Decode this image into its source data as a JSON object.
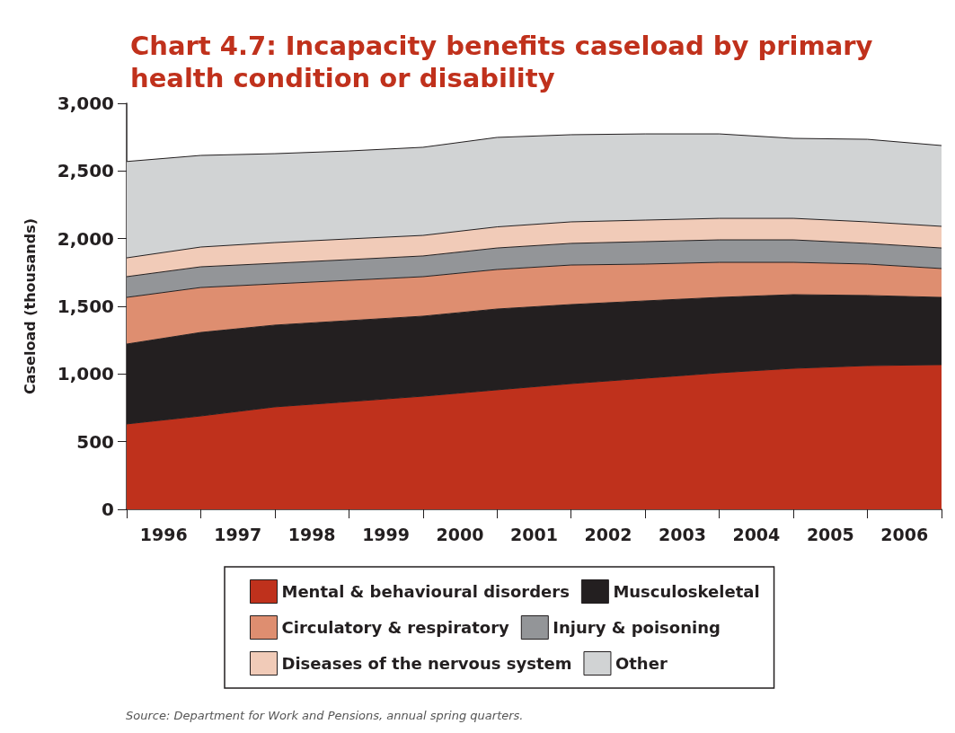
{
  "chart_data": {
    "type": "area",
    "stacked": true,
    "title": "Chart 4.7: Incapacity benefits caseload by primary health condition or disability",
    "ylabel": "Caseload (thousands)",
    "annotations": [
      "Source: Department for Work and Pensions, annual spring quarters."
    ],
    "x": [
      1996,
      1997,
      1998,
      1999,
      2000,
      2001,
      2002,
      2003,
      2004,
      2005,
      2006,
      2007
    ],
    "xlim": [
      1996,
      2007
    ],
    "xticks": [
      {
        "value": 1996,
        "label": null
      },
      {
        "value": 1996.5,
        "label": "1996"
      },
      {
        "value": 1997,
        "label": null
      },
      {
        "value": 1997.5,
        "label": "1997"
      },
      {
        "value": 1998,
        "label": null
      },
      {
        "value": 1998.5,
        "label": "1998"
      },
      {
        "value": 1999,
        "label": null
      },
      {
        "value": 1999.5,
        "label": "1999"
      },
      {
        "value": 2000,
        "label": null
      },
      {
        "value": 2000.5,
        "label": "2000"
      },
      {
        "value": 2001,
        "label": null
      },
      {
        "value": 2001.5,
        "label": "2001"
      },
      {
        "value": 2002,
        "label": null
      },
      {
        "value": 2002.5,
        "label": "2002"
      },
      {
        "value": 2003,
        "label": null
      },
      {
        "value": 2003.5,
        "label": "2003"
      },
      {
        "value": 2004,
        "label": null
      },
      {
        "value": 2004.5,
        "label": "2004"
      },
      {
        "value": 2005,
        "label": null
      },
      {
        "value": 2005.5,
        "label": "2005"
      },
      {
        "value": 2006,
        "label": null
      },
      {
        "value": 2006.5,
        "label": "2006"
      },
      {
        "value": 2007,
        "label": null
      }
    ],
    "ylim": [
      0,
      3000
    ],
    "yticks": [
      0,
      500,
      {
        "value": 1000,
        "label": "1,000"
      },
      {
        "value": 1500,
        "label": "1,500"
      },
      {
        "value": 2000,
        "label": "2,000"
      },
      {
        "value": 2500,
        "label": "2,500"
      },
      {
        "value": 3000,
        "label": "3,000"
      }
    ],
    "grid": false,
    "legend": "bottom",
    "series": [
      {
        "name": "Mental & behavioural disorders",
        "color": "#bf311c",
        "values": [
          631,
          690,
          757,
          796,
          836,
          883,
          929,
          969,
          1009,
          1042,
          1062,
          1069
        ]
      },
      {
        "name": "Musculoskeletal",
        "color": "#231f20",
        "values": [
          590,
          617,
          604,
          598,
          591,
          597,
          584,
          571,
          557,
          544,
          518,
          497
        ]
      },
      {
        "name": "Circulatory & respiratory",
        "color": "#de8e70",
        "values": [
          345,
          332,
          305,
          298,
          292,
          292,
          292,
          272,
          259,
          239,
          232,
          213
        ]
      },
      {
        "name": "Injury & poisoning",
        "color": "#939598",
        "values": [
          153,
          153,
          152,
          153,
          153,
          159,
          160,
          166,
          166,
          166,
          153,
          152
        ]
      },
      {
        "name": "Diseases of the nervous system",
        "color": "#f1cbb8",
        "values": [
          139,
          146,
          153,
          153,
          152,
          156,
          159,
          159,
          159,
          159,
          159,
          160
        ]
      },
      {
        "name": "Other",
        "color": "#d1d3d4",
        "values": [
          712,
          677,
          657,
          650,
          651,
          661,
          644,
          637,
          624,
          591,
          610,
          597
        ]
      }
    ]
  }
}
